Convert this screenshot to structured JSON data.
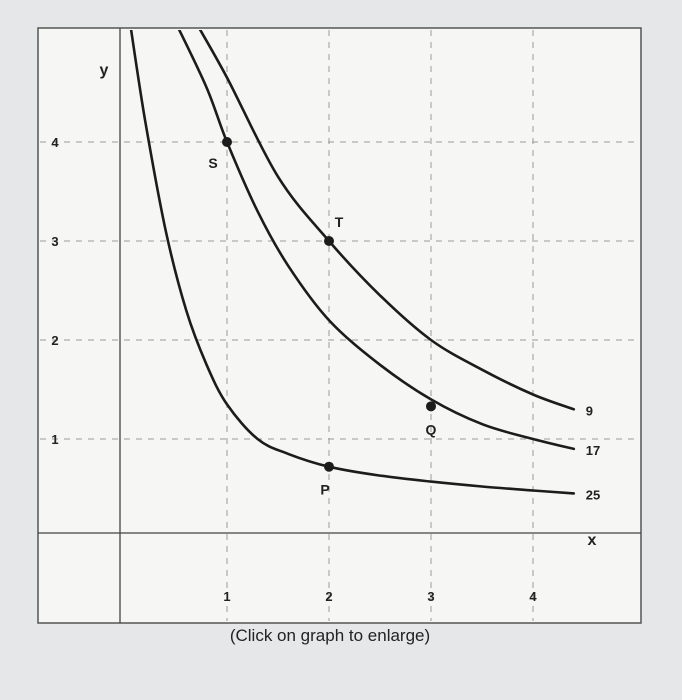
{
  "caption": "(Click on graph to enlarge)",
  "colors": {
    "background": "#e6e7e9",
    "panel": "#f6f6f4",
    "ink": "#1c1c1c",
    "grid": "#9a9a9a"
  },
  "chart_data": {
    "type": "line",
    "xlabel": "x",
    "ylabel": "y",
    "xlim": [
      0,
      5
    ],
    "ylim": [
      0,
      5
    ],
    "x_ticks": [
      "1",
      "2",
      "3",
      "4"
    ],
    "y_ticks": [
      "1",
      "2",
      "3",
      "4"
    ],
    "grid": true,
    "series": [
      {
        "name": "9",
        "x": [
          0.7,
          1.0,
          1.5,
          2.0,
          2.5,
          3.0,
          3.5,
          4.0,
          4.4
        ],
        "y": [
          5.2,
          4.65,
          3.65,
          3.0,
          2.45,
          2.0,
          1.7,
          1.45,
          1.3
        ]
      },
      {
        "name": "17",
        "x": [
          0.5,
          0.8,
          1.0,
          1.3,
          1.6,
          2.0,
          2.5,
          3.0,
          3.5,
          4.0,
          4.4
        ],
        "y": [
          5.2,
          4.55,
          4.0,
          3.3,
          2.75,
          2.2,
          1.75,
          1.4,
          1.15,
          1.0,
          0.9
        ]
      },
      {
        "name": "25",
        "x": [
          0.05,
          0.2,
          0.4,
          0.6,
          0.8,
          1.0,
          1.3,
          1.6,
          2.0,
          2.5,
          3.0,
          3.5,
          4.0,
          4.4
        ],
        "y": [
          5.2,
          4.2,
          3.1,
          2.3,
          1.75,
          1.35,
          1.0,
          0.85,
          0.72,
          0.63,
          0.57,
          0.52,
          0.48,
          0.45
        ]
      }
    ],
    "points": [
      {
        "label": "S",
        "x": 1.0,
        "y": 4.0
      },
      {
        "label": "T",
        "x": 2.0,
        "y": 3.0
      },
      {
        "label": "Q",
        "x": 3.0,
        "y": 1.33
      },
      {
        "label": "P",
        "x": 2.0,
        "y": 0.72
      }
    ]
  }
}
